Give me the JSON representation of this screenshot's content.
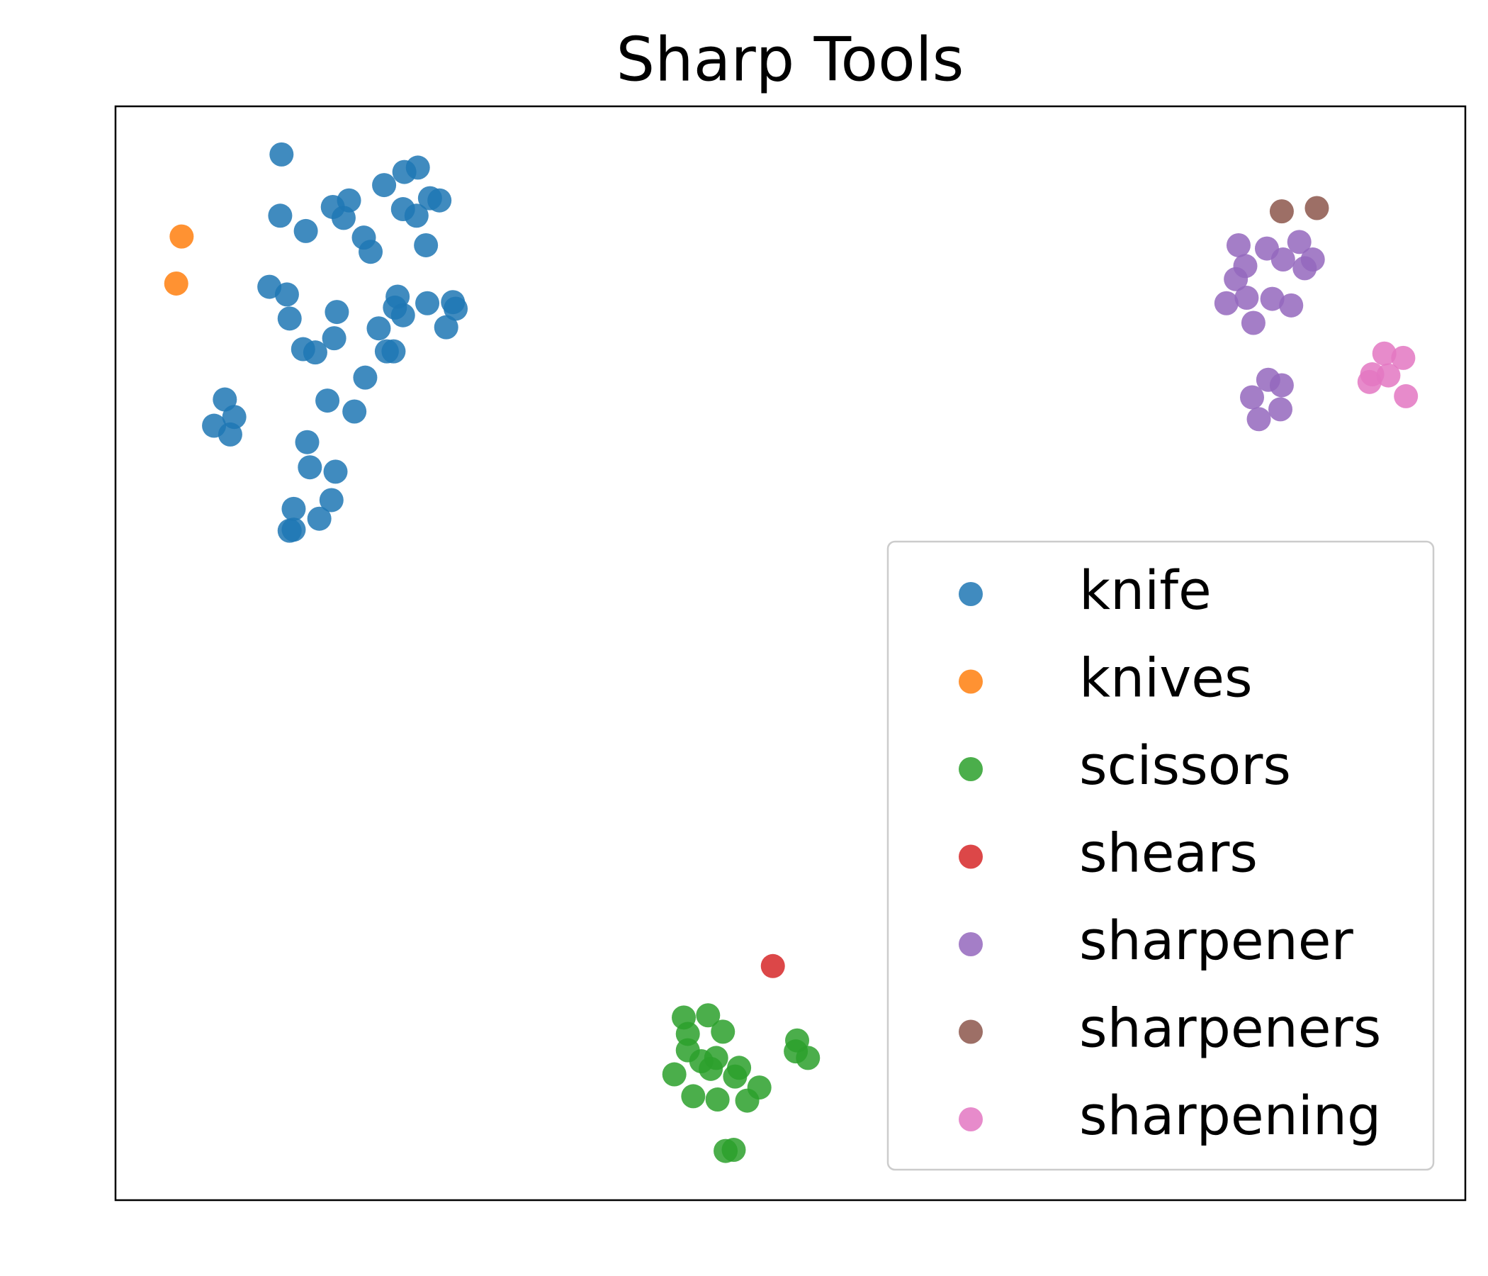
{
  "chart_data": {
    "type": "scatter",
    "title": "Sharp Tools",
    "xlim": [
      0,
      100
    ],
    "ylim": [
      0,
      100
    ],
    "legend": "lower right",
    "series": [
      {
        "name": "knife",
        "color": "#1f77b4",
        "x": [
          12.3,
          12.2,
          14.1,
          16.1,
          17.3,
          16.9,
          18.4,
          18.9,
          19.9,
          21.4,
          22.4,
          21.3,
          22.3,
          23.3,
          24.0,
          23.0,
          11.4,
          12.7,
          12.9,
          16.4,
          16.2,
          13.9,
          14.8,
          19.5,
          20.1,
          20.6,
          20.9,
          21.3,
          20.7,
          23.1,
          25.0,
          25.2,
          24.5,
          18.5,
          15.7,
          17.7,
          8.1,
          8.8,
          7.3,
          8.5,
          14.2,
          14.4,
          16.3,
          16.0,
          13.2,
          12.9,
          13.2,
          15.1
        ],
        "y": [
          95.6,
          90.0,
          88.6,
          90.8,
          91.4,
          89.8,
          88.0,
          86.7,
          92.8,
          94.0,
          94.4,
          90.6,
          90.0,
          91.6,
          91.4,
          87.3,
          83.5,
          82.8,
          80.6,
          81.2,
          78.8,
          77.8,
          77.5,
          79.7,
          77.6,
          77.6,
          82.6,
          80.9,
          81.6,
          82.0,
          82.1,
          81.5,
          79.8,
          75.2,
          73.1,
          72.1,
          73.2,
          71.6,
          70.8,
          70.0,
          69.3,
          67.0,
          66.6,
          64.0,
          63.2,
          61.2,
          61.3,
          62.3
        ]
      },
      {
        "name": "knives",
        "color": "#ff7f0e",
        "x": [
          4.9,
          4.5
        ],
        "y": [
          88.1,
          83.8
        ]
      },
      {
        "name": "scissors",
        "color": "#2ca02c",
        "x": [
          42.1,
          43.9,
          42.4,
          45.0,
          42.4,
          44.5,
          43.4,
          44.1,
          41.4,
          46.2,
          45.9,
          47.7,
          42.8,
          44.6,
          46.8,
          50.5,
          50.4,
          51.3,
          45.2,
          45.8
        ],
        "y": [
          16.7,
          16.9,
          15.2,
          15.4,
          13.7,
          13.0,
          12.7,
          12.0,
          11.5,
          12.1,
          11.3,
          10.3,
          9.5,
          9.2,
          9.1,
          14.6,
          13.6,
          13.0,
          4.5,
          4.6
        ]
      },
      {
        "name": "shears",
        "color": "#d62728",
        "x": [
          48.7
        ],
        "y": [
          21.4
        ]
      },
      {
        "name": "sharpener",
        "color": "#9467bd",
        "x": [
          83.2,
          85.3,
          87.7,
          83.7,
          86.5,
          88.7,
          88.1,
          83.0,
          83.8,
          82.3,
          85.7,
          87.1,
          84.3,
          85.4,
          86.4,
          84.2,
          86.3,
          84.7
        ],
        "y": [
          87.3,
          87.0,
          87.6,
          85.4,
          86.0,
          86.0,
          85.2,
          84.2,
          82.5,
          82.0,
          82.4,
          81.8,
          80.2,
          75.0,
          74.5,
          73.4,
          72.3,
          71.4
        ]
      },
      {
        "name": "sharpeners",
        "color": "#8c564b",
        "x": [
          86.4,
          89.0
        ],
        "y": [
          90.4,
          90.7
        ]
      },
      {
        "name": "sharpening",
        "color": "#e377c2",
        "x": [
          94.0,
          95.4,
          93.1,
          94.3,
          92.9,
          95.6
        ],
        "y": [
          77.4,
          77.0,
          75.5,
          75.4,
          74.8,
          73.5
        ]
      }
    ]
  }
}
